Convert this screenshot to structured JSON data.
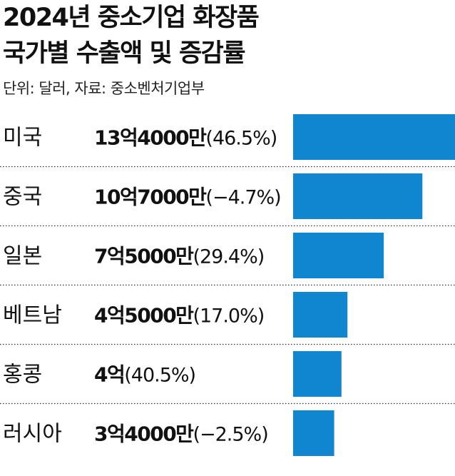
{
  "chart_data": {
    "type": "bar",
    "orientation": "horizontal",
    "title": "2024년 중소기업 화장품 국가별 수출액 및 증감률",
    "title_lines": [
      "2024년 중소기업 화장품",
      "국가별 수출액 및 증감률"
    ],
    "subtitle": "단위: 달러, 자료: 중소벤처기업부",
    "bar_color": "#0f86cf",
    "categories": [
      "미국",
      "중국",
      "일본",
      "베트남",
      "홍콩",
      "러시아"
    ],
    "values": [
      1340000000,
      1070000000,
      750000000,
      450000000,
      400000000,
      340000000
    ],
    "amount_labels": [
      "13억4000만",
      "10억7000만",
      "7억5000만",
      "4억5000만",
      "4억",
      "3억4000만"
    ],
    "change_labels": [
      "(46.5%)",
      "(−4.7%)",
      "(29.4%)",
      "(17.0%)",
      "(40.5%)",
      "(−2.5%)"
    ],
    "growth_rate": [
      46.5,
      -4.7,
      29.4,
      17.0,
      40.5,
      -2.5
    ],
    "legend": "none",
    "grid": false
  }
}
